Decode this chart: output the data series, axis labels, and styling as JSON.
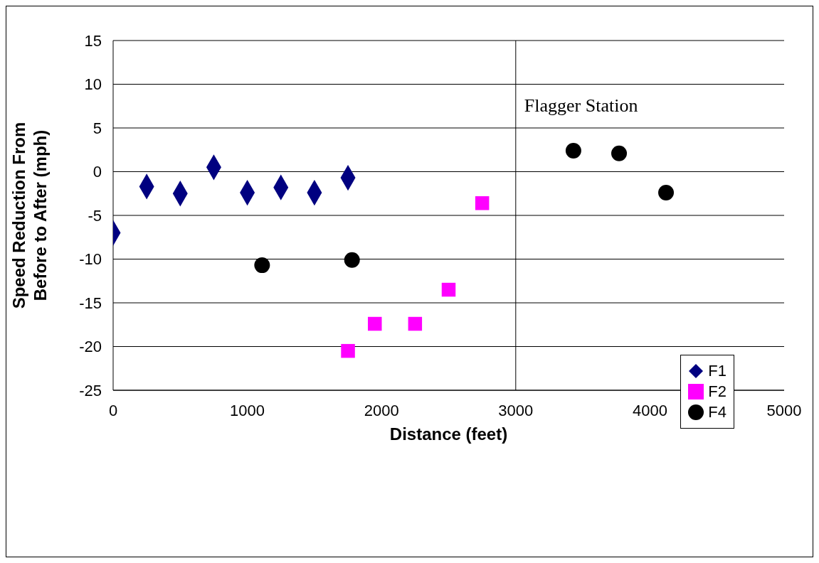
{
  "chart_data": {
    "type": "scatter",
    "xlabel": "Distance (feet)",
    "ylabel": "Speed Reduction From Before to After (mph)",
    "xlim": [
      0,
      5000
    ],
    "xticks": [
      0,
      1000,
      2000,
      3000,
      4000,
      5000
    ],
    "ylim": [
      -25,
      15
    ],
    "yticks": [
      -25,
      -20,
      -15,
      -10,
      -5,
      0,
      5,
      10,
      15
    ],
    "grid": "y",
    "legend": "bottom right",
    "ref_lines": [
      {
        "axis": "x",
        "value": 3000,
        "label": "Flagger Station",
        "color": "#000000"
      }
    ],
    "series": [
      {
        "name": "F1",
        "color": "#000080",
        "marker": "diamond",
        "x": [
          0,
          250,
          500,
          750,
          1000,
          1250,
          1500,
          1750
        ],
        "values": [
          -7.0,
          -1.7,
          -2.5,
          0.5,
          -2.4,
          -1.8,
          -2.4,
          -0.7
        ]
      },
      {
        "name": "F2",
        "color": "#ff00ff",
        "marker": "square",
        "x": [
          1750,
          1950,
          2250,
          2500,
          2750
        ],
        "values": [
          -20.5,
          -17.4,
          -17.4,
          -13.5,
          -3.6
        ]
      },
      {
        "name": "F4",
        "color": "#000000",
        "marker": "circle",
        "x": [
          1110,
          1780,
          3430,
          3770,
          4120
        ],
        "values": [
          -10.7,
          -10.1,
          2.4,
          2.1,
          -2.4
        ]
      }
    ]
  }
}
